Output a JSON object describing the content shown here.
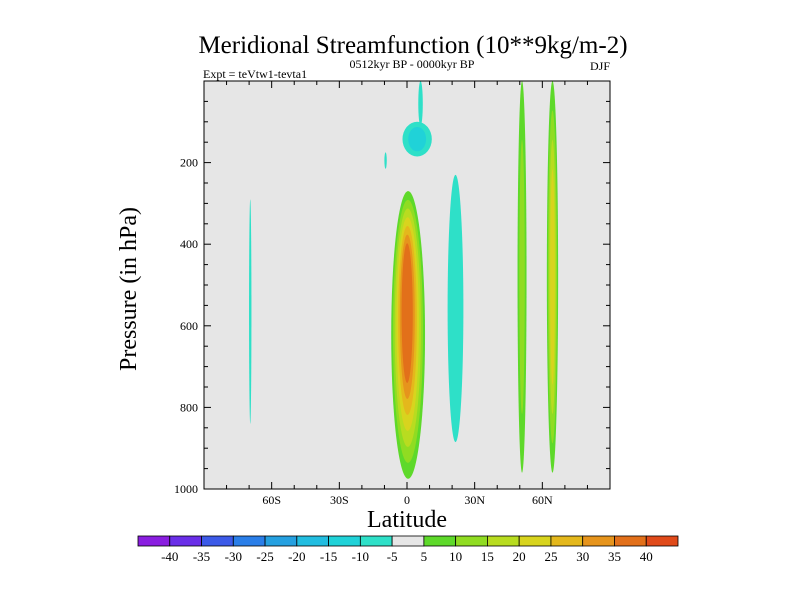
{
  "chart_data": {
    "type": "contour",
    "title": "Meridional Streamfunction (10**9kg/m-2)",
    "subtitle": "0512kyr BP - 0000kyr BP",
    "left_note": "Expt = teVtw1-tevta1",
    "right_note": "DJF",
    "xlabel": "Latitude",
    "ylabel": "Pressure (in hPa)",
    "xlim": [
      -90,
      90
    ],
    "ylim": [
      1000,
      0
    ],
    "x_ticks": [
      {
        "value": -60,
        "label": "60S"
      },
      {
        "value": -30,
        "label": "30S"
      },
      {
        "value": 0,
        "label": "0"
      },
      {
        "value": 30,
        "label": "30N"
      },
      {
        "value": 60,
        "label": "60N"
      }
    ],
    "y_ticks": [
      {
        "value": 200,
        "label": "200"
      },
      {
        "value": 400,
        "label": "400"
      },
      {
        "value": 600,
        "label": "600"
      },
      {
        "value": 800,
        "label": "800"
      },
      {
        "value": 1000,
        "label": "1000"
      }
    ],
    "background_color": "#e6e6e6",
    "colorbar": {
      "labels": [
        "-40",
        "-35",
        "-30",
        "-25",
        "-20",
        "-15",
        "-10",
        "-5",
        "5",
        "10",
        "15",
        "20",
        "25",
        "30",
        "35",
        "40"
      ],
      "colors": [
        "#8a1ee0",
        "#6a2ee8",
        "#3c5ae8",
        "#2a7ee8",
        "#25a0e0",
        "#22bde0",
        "#20d2d8",
        "#2ee0c8",
        "#e6e6e6",
        "#5ed92a",
        "#90dc22",
        "#b8dc20",
        "#d8d41e",
        "#e4b81c",
        "#e6941c",
        "#e2701a",
        "#e04a1a"
      ]
    },
    "features": [
      {
        "name": "equatorial-positive-cell",
        "levels": [
          5,
          10,
          15,
          20,
          25,
          30,
          35
        ],
        "lat_range": [
          -7,
          8
        ],
        "p_range": [
          270,
          975
        ],
        "peak": 37,
        "peak_lat": 0,
        "peak_p": 560
      },
      {
        "name": "upper-negative-cell",
        "levels": [
          -5,
          -10
        ],
        "lat_range": [
          -2,
          11
        ],
        "p_range": [
          100,
          185
        ],
        "peak": -12
      },
      {
        "name": "upper-stratosphere-negative-band",
        "levels": [
          -5
        ],
        "lat_range": [
          5,
          7
        ],
        "p_range": [
          0,
          110
        ],
        "peak": -6
      },
      {
        "name": "small-negative-blob",
        "levels": [
          -5
        ],
        "lat_range": [
          -10,
          -9
        ],
        "p_range": [
          175,
          215
        ],
        "peak": -6
      },
      {
        "name": "sh-midlat-negative-band",
        "levels": [
          -5
        ],
        "lat_range": [
          -70,
          -69
        ],
        "p_range": [
          290,
          840
        ],
        "peak": -6
      },
      {
        "name": "nh-subtropical-negative-cell",
        "levels": [
          -5
        ],
        "lat_range": [
          18,
          25
        ],
        "p_range": [
          230,
          885
        ],
        "peak": -7
      },
      {
        "name": "nh-midlat-positive-band",
        "levels": [
          5,
          10
        ],
        "lat_range": [
          49,
          53
        ],
        "p_range": [
          0,
          960
        ],
        "peak": 12
      },
      {
        "name": "nh-highlat-positive-band",
        "levels": [
          5,
          10,
          15,
          20
        ],
        "lat_range": [
          62,
          67
        ],
        "p_range": [
          0,
          960
        ],
        "peak": 21
      }
    ]
  }
}
